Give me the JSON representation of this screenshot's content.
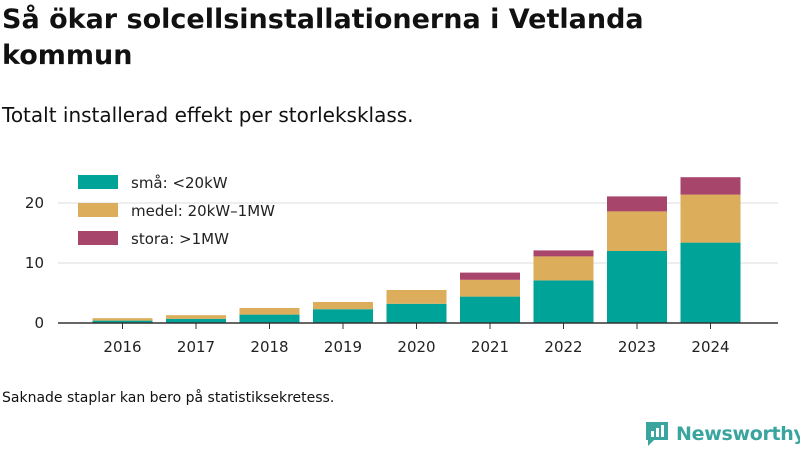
{
  "header": {
    "title": "Så ökar solcellsinstallationerna i Vetlanda kommun",
    "subtitle": "Totalt installerad effekt per storleksklass."
  },
  "footer": {
    "note": "Saknade staplar kan bero på statistiksekretess.",
    "brand": "Newsworthy"
  },
  "icons": {
    "brand_logo": "bar-chart-speech-bubble-icon"
  },
  "chart_data": {
    "type": "bar",
    "stacked": true,
    "categories": [
      "2016",
      "2017",
      "2018",
      "2019",
      "2020",
      "2021",
      "2022",
      "2023",
      "2024"
    ],
    "series": [
      {
        "name": "små: <20kW",
        "color": "#00a398",
        "values": [
          0.4,
          0.7,
          1.4,
          2.3,
          3.2,
          4.4,
          7.1,
          12.0,
          13.4
        ]
      },
      {
        "name": "medel: 20kW–1MW",
        "color": "#dcad5a",
        "values": [
          0.4,
          0.6,
          1.1,
          1.2,
          2.3,
          2.8,
          4.0,
          6.6,
          8.0
        ]
      },
      {
        "name": "stora: >1MW",
        "color": "#a8456b",
        "values": [
          0,
          0,
          0,
          0,
          0,
          1.2,
          1.0,
          2.5,
          2.9
        ]
      }
    ],
    "yticks": [
      0,
      10,
      20
    ],
    "ylim": [
      0,
      27
    ],
    "grid": true,
    "legend": "top-left",
    "xlabel": "",
    "ylabel": ""
  }
}
